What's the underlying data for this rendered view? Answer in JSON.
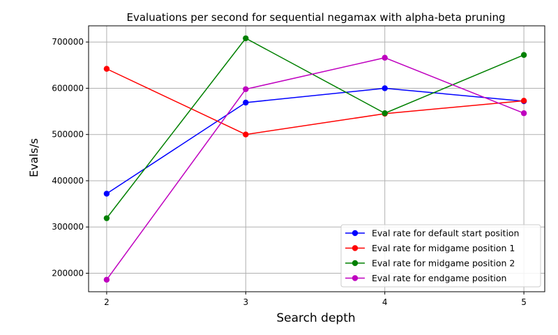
{
  "chart_data": {
    "type": "line",
    "title": "Evaluations per second for sequential negamax with alpha-beta pruning",
    "xlabel": "Search depth",
    "ylabel": "Evals/s",
    "x": [
      2,
      3,
      4,
      5
    ],
    "xticks": [
      "2",
      "3",
      "4",
      "5"
    ],
    "yticks": [
      200000,
      300000,
      400000,
      500000,
      600000,
      700000
    ],
    "ytick_labels": [
      "200000",
      "300000",
      "400000",
      "500000",
      "600000",
      "700000"
    ],
    "xlim": [
      1.87,
      5.15
    ],
    "ylim": [
      160000,
      735000
    ],
    "grid": true,
    "legend_position": "lower-right",
    "series": [
      {
        "name": "Eval rate for default start position",
        "color": "#0000ff",
        "values": [
          372000,
          569000,
          600000,
          572000
        ]
      },
      {
        "name": "Eval rate for midgame position 1",
        "color": "#ff0000",
        "values": [
          642000,
          500000,
          545000,
          573000
        ]
      },
      {
        "name": "Eval rate for midgame position 2",
        "color": "#008000",
        "values": [
          319000,
          708000,
          546000,
          672000
        ]
      },
      {
        "name": "Eval rate for endgame position",
        "color": "#bf00bf",
        "values": [
          186000,
          598000,
          666000,
          546000
        ]
      }
    ]
  }
}
